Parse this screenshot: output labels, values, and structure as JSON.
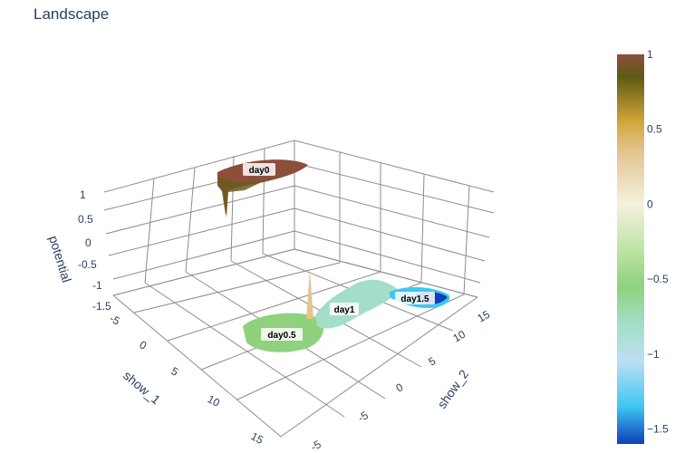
{
  "chart_data": {
    "type": "surface",
    "title": "Landscape",
    "axes": {
      "x": {
        "title": "show_1",
        "ticks": [
          "-5",
          "0",
          "5",
          "10",
          "15"
        ]
      },
      "y": {
        "title": "show_2",
        "ticks": [
          "-5",
          "0",
          "5",
          "10",
          "15"
        ]
      },
      "z": {
        "title": "potential",
        "ticks": [
          "-1.5",
          "-1",
          "-0.5",
          "0",
          "0.5",
          "1"
        ]
      }
    },
    "colorscale": {
      "ticks": [
        "1",
        "0.5",
        "0",
        "−0.5",
        "−1",
        "−1.5"
      ],
      "range": [
        -1.6,
        1.0
      ],
      "stops": [
        {
          "value": 1.0,
          "color": "#8c4f3c"
        },
        {
          "value": 0.85,
          "color": "#5e5a14"
        },
        {
          "value": 0.55,
          "color": "#d3a63c"
        },
        {
          "value": 0.35,
          "color": "#e2c48f"
        },
        {
          "value": 0.0,
          "color": "#f5f1de"
        },
        {
          "value": -0.3,
          "color": "#bfe4a6"
        },
        {
          "value": -0.55,
          "color": "#8fd17c"
        },
        {
          "value": -0.8,
          "color": "#a3dfc8"
        },
        {
          "value": -1.05,
          "color": "#bcdff3"
        },
        {
          "value": -1.35,
          "color": "#3fc6f2"
        },
        {
          "value": -1.6,
          "color": "#0e3fba"
        }
      ]
    },
    "annotations": [
      {
        "text": "day0",
        "show_1": -3,
        "show_2": 8,
        "potential": 0.9
      },
      {
        "text": "day0.5",
        "show_1": 10,
        "show_2": -2,
        "potential": -1.0
      },
      {
        "text": "day1",
        "show_1": 7,
        "show_2": 3,
        "potential": -1.0
      },
      {
        "text": "day1.5",
        "show_1": 5,
        "show_2": 11,
        "potential": -1.3
      }
    ]
  }
}
